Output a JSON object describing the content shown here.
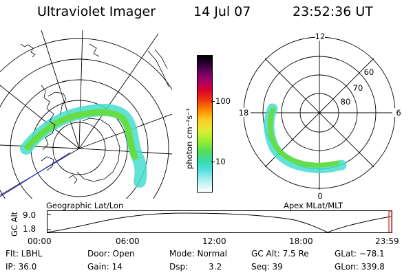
{
  "header": {
    "instrument": "Ultraviolet Imager",
    "date": "14 Jul 07",
    "time": "23:52:36 UT"
  },
  "colorbar": {
    "unit_label": "photon cm⁻²s⁻¹",
    "ticks": [
      "100",
      "10"
    ]
  },
  "geo_map": {
    "caption": "Geographic Lat/Lon"
  },
  "polar_map": {
    "caption": "Apex MLat/MLT",
    "mlt_labels": [
      "12",
      "18",
      "6",
      "0"
    ],
    "lat_labels": [
      "60",
      "70",
      "80"
    ]
  },
  "altitude_plot": {
    "axis_label": "GC Alt",
    "y_ticks": [
      "9.0",
      "1.8"
    ],
    "x_ticks": [
      "00:00",
      "06:00",
      "12:00",
      "18:00",
      "23:59"
    ]
  },
  "status": {
    "flt": "Flt: LBHL",
    "ip": "IP: 36.0",
    "door": "Door: Open",
    "gain": "Gain: 14",
    "mode": "Mode: Normal",
    "dsp": "Dsp:",
    "dsp_value": "3.2",
    "gc_alt": "GC Alt: 7.5 Re",
    "seq": "Seq: 39",
    "glat": "GLat: −78.1",
    "glon": "GLon: 339.8"
  },
  "colors": {
    "aurora_green": "#55dd55",
    "aurora_cyan": "#44ddcc",
    "trajectory_blue": "#3333cc",
    "marker_red": "#cc2222"
  }
}
